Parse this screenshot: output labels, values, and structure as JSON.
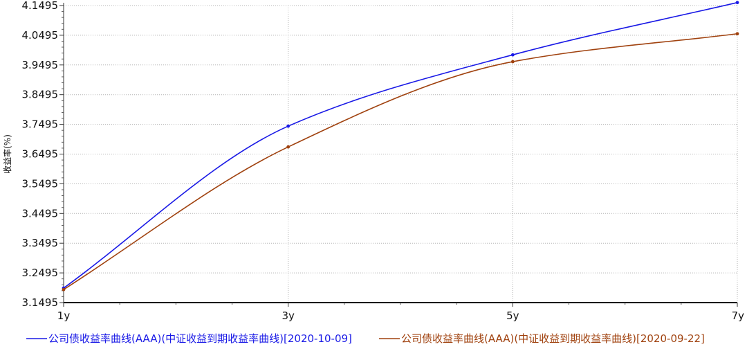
{
  "chart_data": {
    "type": "line",
    "title": "",
    "xlabel": "",
    "ylabel": "收益率(%)",
    "x_categories": [
      "1y",
      "3y",
      "5y",
      "7y"
    ],
    "ylim": [
      3.1495,
      4.1495
    ],
    "yticks": [
      "3.1495",
      "3.2495",
      "3.3495",
      "3.4495",
      "3.5495",
      "3.6495",
      "3.7495",
      "3.8495",
      "3.9495",
      "4.0495",
      "4.1495"
    ],
    "grid": true,
    "legend_position": "bottom",
    "series": [
      {
        "name": "公司债收益率曲线(AAA)(中证收益到期收益率曲线)[2020-10-09]",
        "color": "#1a1ae6",
        "x": [
          1,
          3,
          5,
          7
        ],
        "values": [
          3.1985,
          3.7435,
          3.9835,
          4.1595
        ]
      },
      {
        "name": "公司债收益率曲线(AAA)(中证收益到期收益率曲线)[2020-09-22]",
        "color": "#a0420f",
        "x": [
          1,
          3,
          5,
          7
        ],
        "values": [
          3.1935,
          3.6735,
          3.9605,
          4.0545
        ]
      }
    ]
  }
}
